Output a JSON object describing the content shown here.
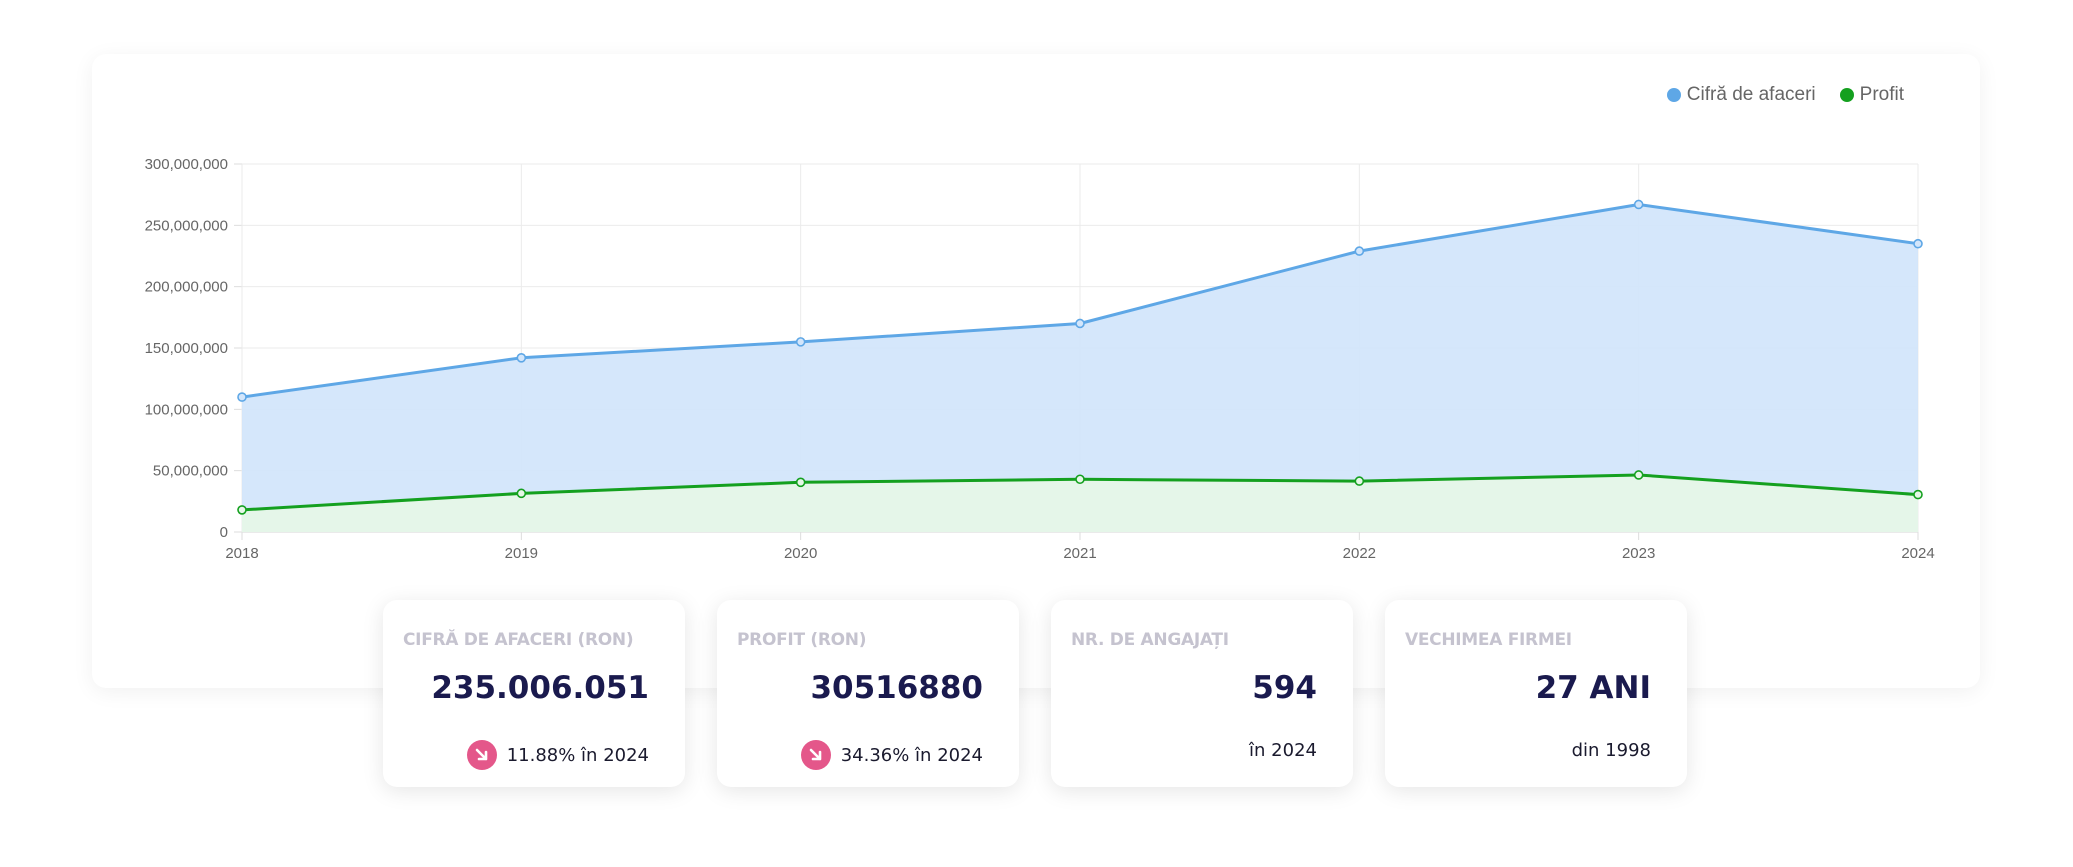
{
  "chart_data": {
    "type": "area",
    "x": [
      "2018",
      "2019",
      "2020",
      "2021",
      "2022",
      "2023",
      "2024"
    ],
    "y_ticks": [
      "0",
      "50,000,000",
      "100,000,000",
      "150,000,000",
      "200,000,000",
      "250,000,000",
      "300,000,000"
    ],
    "ylim": [
      0,
      300000000
    ],
    "grid": true,
    "legend_position": "top-right",
    "series": [
      {
        "name": "Cifră de afaceri",
        "color": "#5ea7e6",
        "fill": "#d3e6fb",
        "values": [
          110000000,
          142000000,
          155000000,
          170000000,
          229000000,
          267000000,
          235006051
        ]
      },
      {
        "name": "Profit",
        "color": "#14a01f",
        "fill": "#e6f7e8",
        "values": [
          18000000,
          31500000,
          40500000,
          43000000,
          41500000,
          46500000,
          30516880
        ]
      }
    ]
  },
  "stats": [
    {
      "title": "CIFRĂ DE AFACERI (RON)",
      "value": "235.006.051",
      "trend_icon": "arrow-down-right-icon",
      "sub": "11.88% în 2024"
    },
    {
      "title": "PROFIT (RON)",
      "value": "30516880",
      "trend_icon": "arrow-down-right-icon",
      "sub": "34.36% în 2024"
    },
    {
      "title": "NR. DE ANGAJAȚI",
      "value": "594",
      "sub": "în 2024"
    },
    {
      "title": "VECHIMEA FIRMEI",
      "value": "27 ANI",
      "sub": "din 1998"
    }
  ],
  "colors": {
    "accent_dark": "#1a1a4e",
    "trend_badge": "#e4578a"
  }
}
